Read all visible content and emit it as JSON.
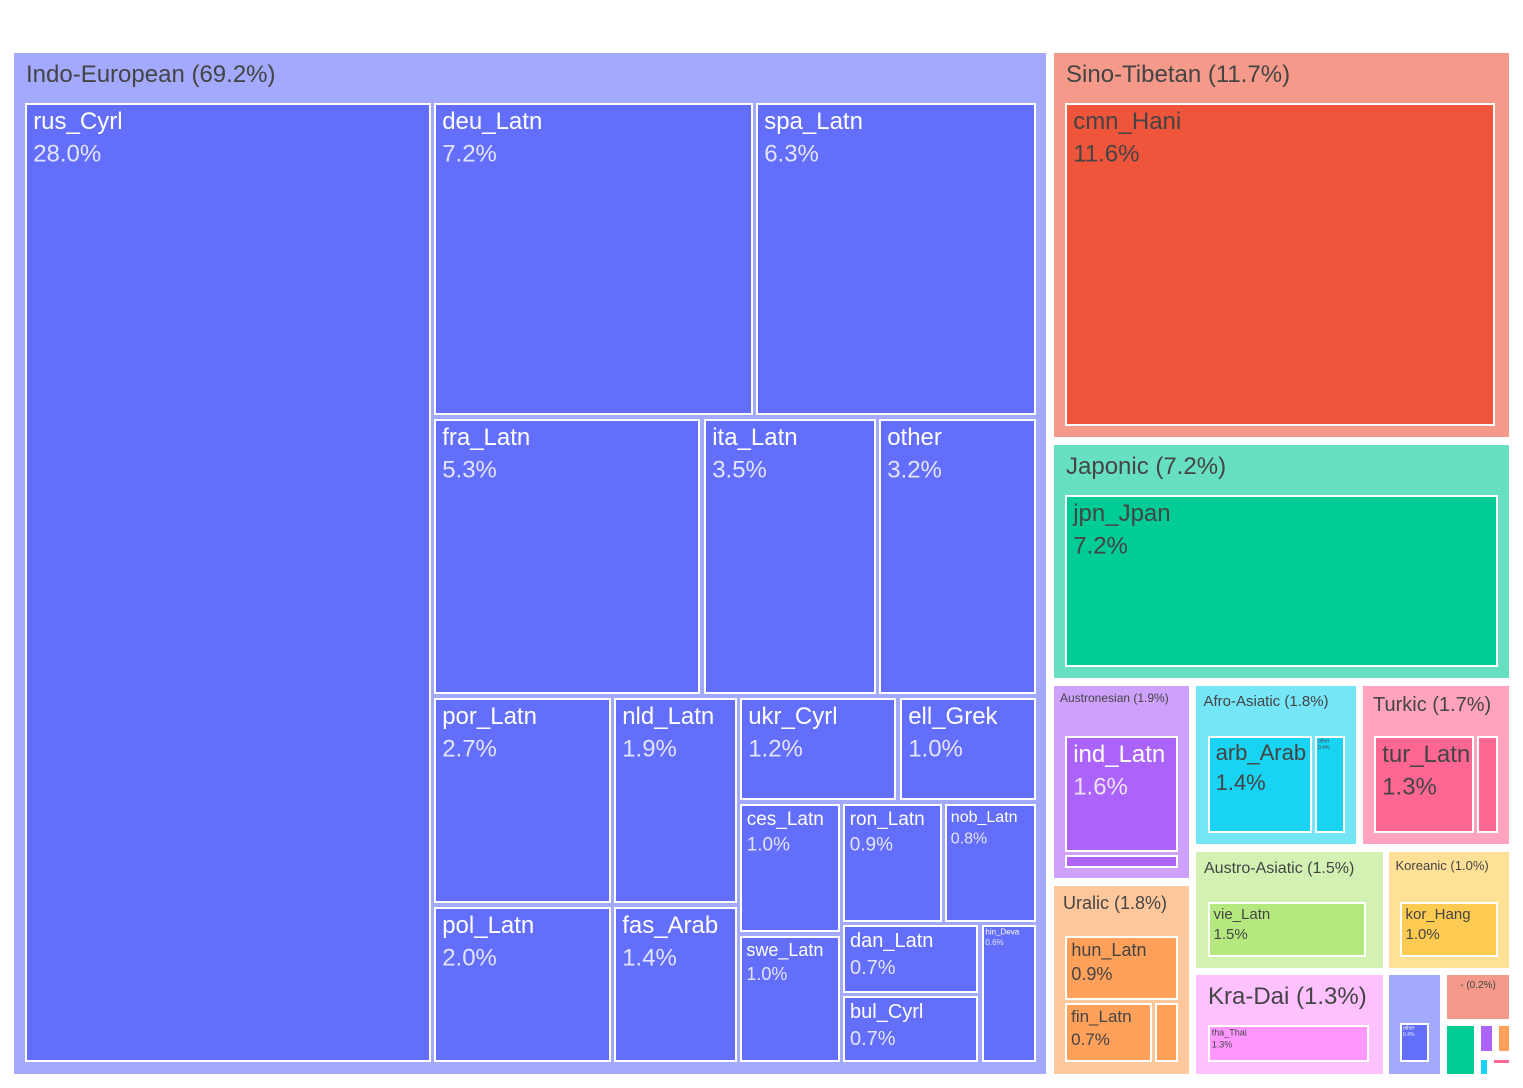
{
  "chart_data": {
    "type": "treemap",
    "title": "",
    "families": [
      {
        "name": "Indo-European",
        "pct": "69.2%",
        "color": "#636efa",
        "light": "#a3a9fc",
        "children": [
          {
            "name": "rus_Cyrl",
            "pct": "28.0%"
          },
          {
            "name": "deu_Latn",
            "pct": "7.2%"
          },
          {
            "name": "spa_Latn",
            "pct": "6.3%"
          },
          {
            "name": "fra_Latn",
            "pct": "5.3%"
          },
          {
            "name": "ita_Latn",
            "pct": "3.5%"
          },
          {
            "name": "other",
            "pct": "3.2%"
          },
          {
            "name": "por_Latn",
            "pct": "2.7%"
          },
          {
            "name": "nld_Latn",
            "pct": "1.9%"
          },
          {
            "name": "ukr_Cyrl",
            "pct": "1.2%"
          },
          {
            "name": "ell_Grek",
            "pct": "1.0%"
          },
          {
            "name": "ces_Latn",
            "pct": "1.0%"
          },
          {
            "name": "ron_Latn",
            "pct": "0.9%"
          },
          {
            "name": "nob_Latn",
            "pct": "0.8%"
          },
          {
            "name": "pol_Latn",
            "pct": "2.0%"
          },
          {
            "name": "fas_Arab",
            "pct": "1.4%"
          },
          {
            "name": "swe_Latn",
            "pct": "1.0%"
          },
          {
            "name": "dan_Latn",
            "pct": "0.7%"
          },
          {
            "name": "hin_Deva",
            "pct": "0.6%"
          },
          {
            "name": "bul_Cyrl",
            "pct": "0.7%"
          }
        ]
      },
      {
        "name": "Sino-Tibetan",
        "pct": "11.7%",
        "color": "#ef553b",
        "light": "#f59a8a",
        "children": [
          {
            "name": "cmn_Hani",
            "pct": "11.6%"
          }
        ]
      },
      {
        "name": "Japonic",
        "pct": "7.2%",
        "color": "#00cc96",
        "light": "#66e0c0",
        "children": [
          {
            "name": "jpn_Jpan",
            "pct": "7.2%"
          }
        ]
      },
      {
        "name": "Austronesian",
        "pct": "1.9%",
        "color": "#ab63fa",
        "light": "#cda1fc",
        "children": [
          {
            "name": "ind_Latn",
            "pct": "1.6%"
          },
          {
            "name": "",
            "pct": ""
          }
        ]
      },
      {
        "name": "Afro-Asiatic",
        "pct": "1.8%",
        "color": "#19d3f3",
        "light": "#75e5f8",
        "children": [
          {
            "name": "arb_Arab",
            "pct": "1.4%"
          },
          {
            "name": "other",
            "pct": "0.4%"
          }
        ]
      },
      {
        "name": "Turkic",
        "pct": "1.7%",
        "color": "#ff6692",
        "light": "#ffa3be",
        "children": [
          {
            "name": "tur_Latn",
            "pct": "1.3%"
          },
          {
            "name": "",
            "pct": ""
          }
        ]
      },
      {
        "name": "Uralic",
        "pct": "1.8%",
        "color": "#ffa15a",
        "light": "#ffc79c",
        "children": [
          {
            "name": "hun_Latn",
            "pct": "0.9%"
          },
          {
            "name": "fin_Latn",
            "pct": "0.7%"
          },
          {
            "name": "",
            "pct": ""
          }
        ]
      },
      {
        "name": "Austro-Asiatic",
        "pct": "1.5%",
        "color": "#b6e880",
        "light": "#d3f1b3",
        "children": [
          {
            "name": "vie_Latn",
            "pct": "1.5%"
          }
        ]
      },
      {
        "name": "Koreanic",
        "pct": "1.0%",
        "color": "#fecb52",
        "light": "#fee097",
        "children": [
          {
            "name": "kor_Hang",
            "pct": "1.0%"
          }
        ]
      },
      {
        "name": "Kra-Dai",
        "pct": "1.3%",
        "color": "#ff97ff",
        "light": "#ffc1ff",
        "children": [
          {
            "name": "tha_Thai",
            "pct": "1.3%"
          }
        ]
      },
      {
        "name": "",
        "pct": "",
        "color": "#636efa",
        "light": "#a3a9fc",
        "children": [
          {
            "name": "other",
            "pct": "0.4%"
          }
        ]
      },
      {
        "name": "-",
        "pct": "(0.2%)",
        "color": "#ef553b",
        "light": "#f59a8a",
        "children": []
      }
    ]
  }
}
